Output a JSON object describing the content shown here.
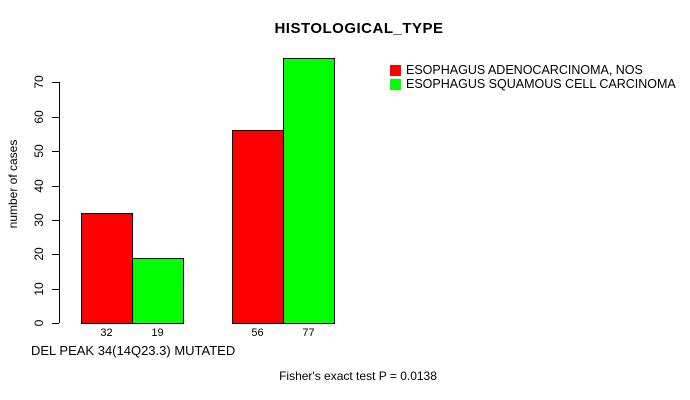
{
  "chart_data": {
    "type": "bar",
    "title": "HISTOLOGICAL_TYPE",
    "ylabel": "number of cases",
    "xlabel": "DEL PEAK 34(14Q23.3) MUTATED",
    "annotation": "Fisher's exact test P = 0.0138",
    "yticks": [
      0,
      10,
      20,
      30,
      40,
      50,
      60,
      70
    ],
    "ylim": [
      0,
      77
    ],
    "grid": false,
    "legend_position": "top-right",
    "categories": [
      "",
      ""
    ],
    "series": [
      {
        "name": "ESOPHAGUS ADENOCARCINOMA, NOS",
        "color": "#ff0000",
        "values": [
          32,
          56
        ]
      },
      {
        "name": "ESOPHAGUS SQUAMOUS CELL CARCINOMA",
        "color": "#00ff00",
        "values": [
          19,
          77
        ]
      }
    ]
  },
  "colors": {
    "bar_red": "#ff0000",
    "bar_green": "#00ff00",
    "axis": "#000000",
    "background": "#ffffff",
    "text": "#000000"
  }
}
